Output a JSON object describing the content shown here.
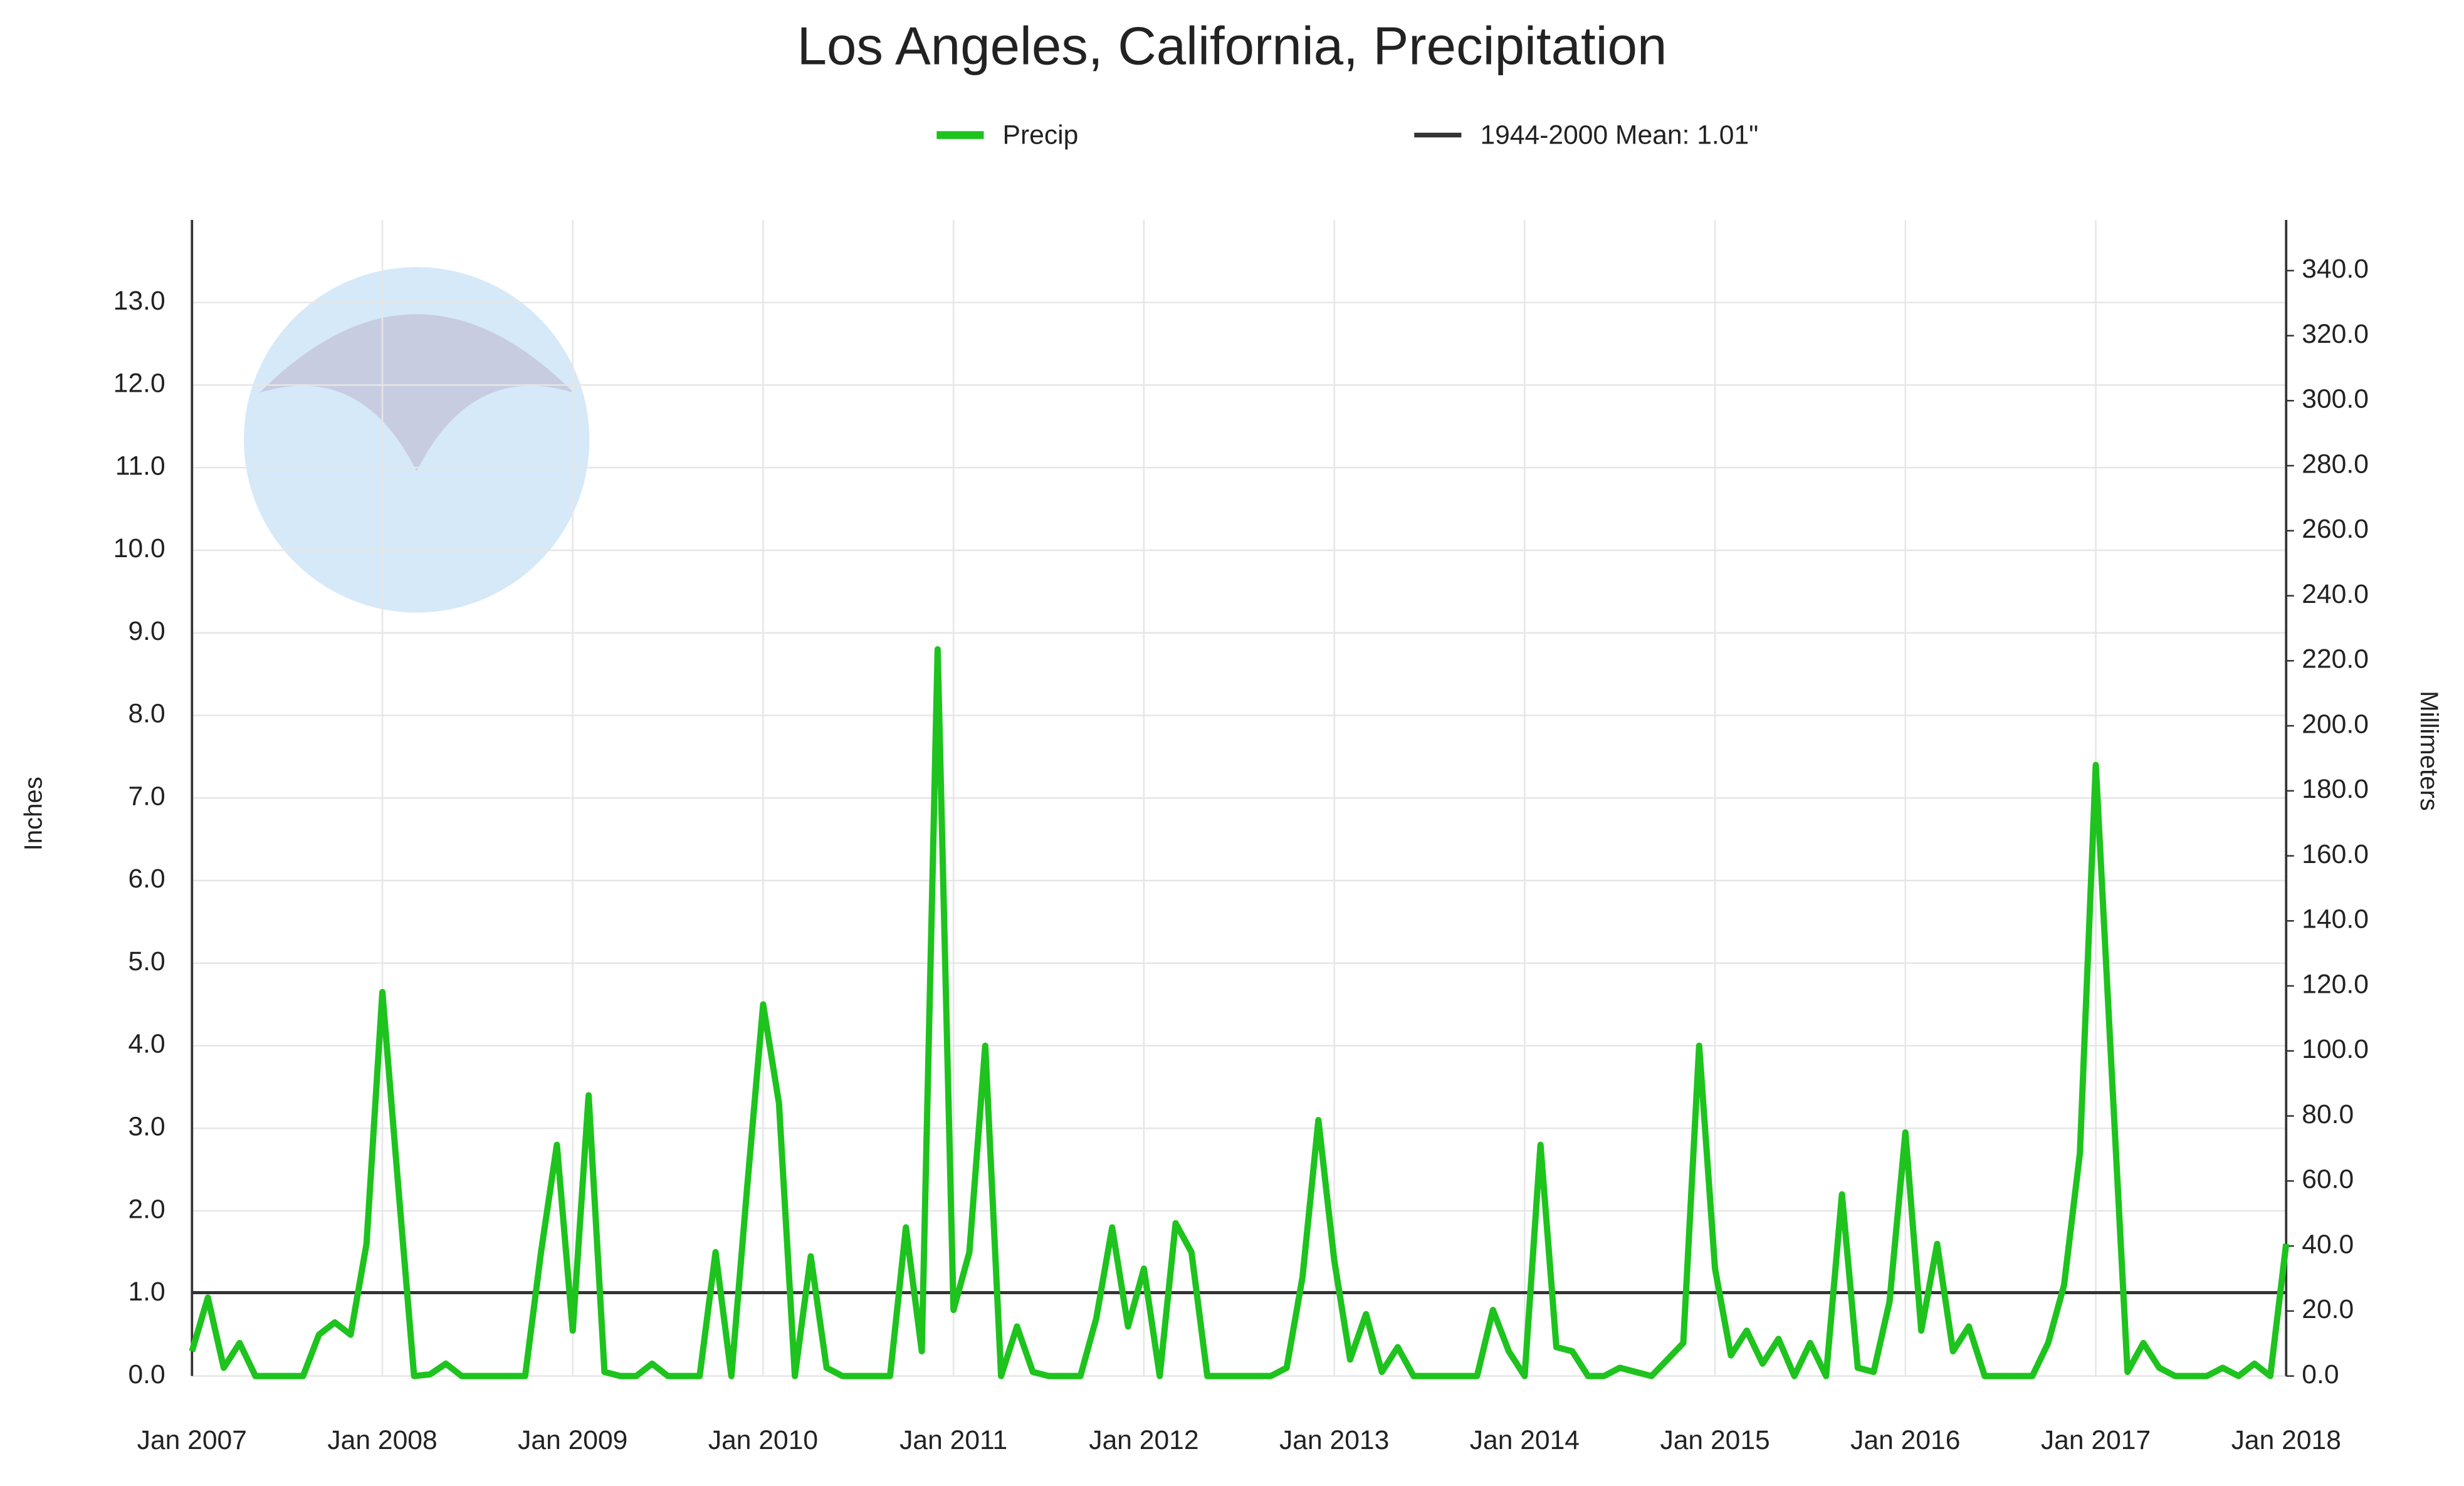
{
  "chart_data": {
    "type": "line",
    "title": "Los Angeles, California, Precipitation",
    "y_label": "Inches",
    "y2_label": "Millimeters",
    "x": [
      "2007-01",
      "2007-02",
      "2007-03",
      "2007-04",
      "2007-05",
      "2007-06",
      "2007-07",
      "2007-08",
      "2007-09",
      "2007-10",
      "2007-11",
      "2007-12",
      "2008-01",
      "2008-02",
      "2008-03",
      "2008-04",
      "2008-05",
      "2008-06",
      "2008-07",
      "2008-08",
      "2008-09",
      "2008-10",
      "2008-11",
      "2008-12",
      "2009-01",
      "2009-02",
      "2009-03",
      "2009-04",
      "2009-05",
      "2009-06",
      "2009-07",
      "2009-08",
      "2009-09",
      "2009-10",
      "2009-11",
      "2009-12",
      "2010-01",
      "2010-02",
      "2010-03",
      "2010-04",
      "2010-05",
      "2010-06",
      "2010-07",
      "2010-08",
      "2010-09",
      "2010-10",
      "2010-11",
      "2010-12",
      "2011-01",
      "2011-02",
      "2011-03",
      "2011-04",
      "2011-05",
      "2011-06",
      "2011-07",
      "2011-08",
      "2011-09",
      "2011-10",
      "2011-11",
      "2011-12",
      "2012-01",
      "2012-02",
      "2012-03",
      "2012-04",
      "2012-05",
      "2012-06",
      "2012-07",
      "2012-08",
      "2012-09",
      "2012-10",
      "2012-11",
      "2012-12",
      "2013-01",
      "2013-02",
      "2013-03",
      "2013-04",
      "2013-05",
      "2013-06",
      "2013-07",
      "2013-08",
      "2013-09",
      "2013-10",
      "2013-11",
      "2013-12",
      "2014-01",
      "2014-02",
      "2014-03",
      "2014-04",
      "2014-05",
      "2014-06",
      "2014-07",
      "2014-08",
      "2014-09",
      "2014-10",
      "2014-11",
      "2014-12",
      "2015-01",
      "2015-02",
      "2015-03",
      "2015-04",
      "2015-05",
      "2015-06",
      "2015-07",
      "2015-08",
      "2015-09",
      "2015-10",
      "2015-11",
      "2015-12",
      "2016-01",
      "2016-02",
      "2016-03",
      "2016-04",
      "2016-05",
      "2016-06",
      "2016-07",
      "2016-08",
      "2016-09",
      "2016-10",
      "2016-11",
      "2016-12",
      "2017-01",
      "2017-02",
      "2017-03",
      "2017-04",
      "2017-05",
      "2017-06",
      "2017-07",
      "2017-08",
      "2017-09",
      "2017-10",
      "2017-11",
      "2017-12",
      "2018-01"
    ],
    "series": [
      {
        "name": "Precip",
        "color": "#1ec31e",
        "values": [
          0.3,
          0.95,
          0.1,
          0.4,
          0,
          0,
          0,
          0,
          0.5,
          0.65,
          0.5,
          1.6,
          4.65,
          2.3,
          0,
          0.02,
          0.15,
          0,
          0,
          0,
          0,
          0,
          1.5,
          2.8,
          0.55,
          3.4,
          0.05,
          0,
          0,
          0.15,
          0,
          0,
          0,
          1.5,
          0,
          2.3,
          4.5,
          3.3,
          0,
          1.45,
          0.1,
          0,
          0,
          0,
          0,
          1.8,
          0.3,
          8.8,
          0.8,
          1.5,
          4.0,
          0,
          0.6,
          0.05,
          0,
          0,
          0,
          0.7,
          1.8,
          0.6,
          1.3,
          0,
          1.85,
          1.5,
          0,
          0,
          0,
          0,
          0,
          0.1,
          1.2,
          3.1,
          1.4,
          0.2,
          0.75,
          0.05,
          0.35,
          0,
          0,
          0,
          0,
          0,
          0.8,
          0.3,
          0,
          2.8,
          0.35,
          0.3,
          0,
          0,
          0.1,
          0.05,
          0,
          0.2,
          0.4,
          4.0,
          1.3,
          0.25,
          0.55,
          0.15,
          0.45,
          0,
          0.4,
          0,
          2.2,
          0.1,
          0.05,
          0.9,
          2.95,
          0.55,
          1.6,
          0.3,
          0.6,
          0,
          0,
          0,
          0,
          0.4,
          1.1,
          2.7,
          7.4,
          3.7,
          0.05,
          0.4,
          0.1,
          0,
          0,
          0,
          0.1,
          0,
          0.15,
          0,
          1.6
        ]
      }
    ],
    "reference_lines": [
      {
        "name": "1944-2000 Mean: 1.01\"",
        "value": 1.01,
        "color": "#333333"
      }
    ],
    "xlim": [
      "2007-01",
      "2018-01"
    ],
    "xticks": [
      {
        "value": "2007-01",
        "label": "Jan 2007"
      },
      {
        "value": "2008-01",
        "label": "Jan 2008"
      },
      {
        "value": "2009-01",
        "label": "Jan 2009"
      },
      {
        "value": "2010-01",
        "label": "Jan 2010"
      },
      {
        "value": "2011-01",
        "label": "Jan 2011"
      },
      {
        "value": "2012-01",
        "label": "Jan 2012"
      },
      {
        "value": "2013-01",
        "label": "Jan 2013"
      },
      {
        "value": "2014-01",
        "label": "Jan 2014"
      },
      {
        "value": "2015-01",
        "label": "Jan 2015"
      },
      {
        "value": "2016-01",
        "label": "Jan 2016"
      },
      {
        "value": "2017-01",
        "label": "Jan 2017"
      },
      {
        "value": "2018-01",
        "label": "Jan 2018"
      }
    ],
    "ylim": [
      0,
      14
    ],
    "yticks": [
      {
        "value": 0,
        "label": "0.0"
      },
      {
        "value": 1,
        "label": "1.0"
      },
      {
        "value": 2,
        "label": "2.0"
      },
      {
        "value": 3,
        "label": "3.0"
      },
      {
        "value": 4,
        "label": "4.0"
      },
      {
        "value": 5,
        "label": "5.0"
      },
      {
        "value": 6,
        "label": "6.0"
      },
      {
        "value": 7,
        "label": "7.0"
      },
      {
        "value": 8,
        "label": "8.0"
      },
      {
        "value": 9,
        "label": "9.0"
      },
      {
        "value": 10,
        "label": "10.0"
      },
      {
        "value": 11,
        "label": "11.0"
      },
      {
        "value": 12,
        "label": "12.0"
      },
      {
        "value": 13,
        "label": "13.0"
      }
    ],
    "y2lim": [
      0,
      355.6
    ],
    "y2ticks": [
      {
        "value": 0,
        "label": "0.0"
      },
      {
        "value": 20,
        "label": "20.0"
      },
      {
        "value": 40,
        "label": "40.0"
      },
      {
        "value": 60,
        "label": "60.0"
      },
      {
        "value": 80,
        "label": "80.0"
      },
      {
        "value": 100,
        "label": "100.0"
      },
      {
        "value": 120,
        "label": "120.0"
      },
      {
        "value": 140,
        "label": "140.0"
      },
      {
        "value": 160,
        "label": "160.0"
      },
      {
        "value": 180,
        "label": "180.0"
      },
      {
        "value": 200,
        "label": "200.0"
      },
      {
        "value": 220,
        "label": "220.0"
      },
      {
        "value": 240,
        "label": "240.0"
      },
      {
        "value": 260,
        "label": "260.0"
      },
      {
        "value": 280,
        "label": "280.0"
      },
      {
        "value": 300,
        "label": "300.0"
      },
      {
        "value": 320,
        "label": "320.0"
      },
      {
        "value": 340,
        "label": "340.0"
      }
    ],
    "grid": true
  }
}
